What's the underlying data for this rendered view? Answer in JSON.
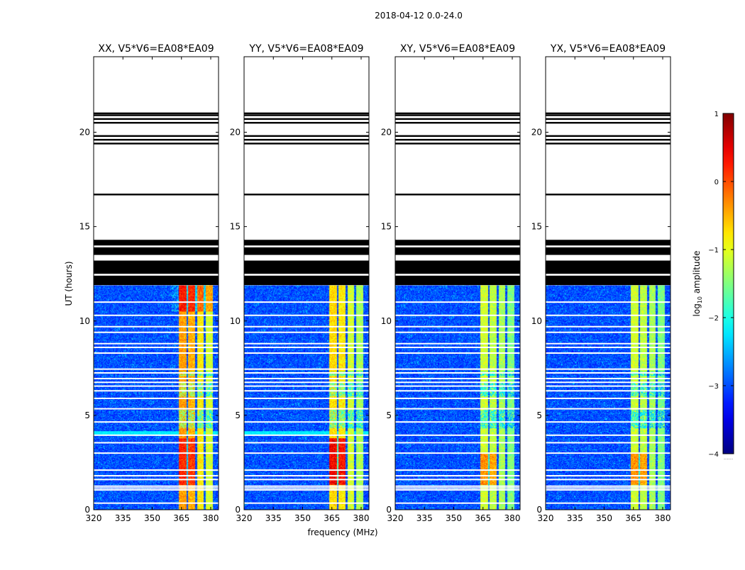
{
  "figure": {
    "suptitle": "2018-04-12 0.0-24.0",
    "xlabel": "frequency (MHz)",
    "ylabel": "UT (hours)",
    "colorbar_label": "log10 amplitude",
    "colorbar_label_base": "log",
    "colorbar_label_sub": "10",
    "colorbar_label_rest": " amplitude",
    "colorbar_dots": "......",
    "colormap": "jet"
  },
  "chart_data": {
    "type": "heatmap",
    "panels": [
      {
        "title": "XX, V5*V6=EA08*EA09",
        "pol": "XX"
      },
      {
        "title": "YY, V5*V6=EA08*EA09",
        "pol": "YY"
      },
      {
        "title": "XY, V5*V6=EA08*EA09",
        "pol": "XY"
      },
      {
        "title": "YX, V5*V6=EA08*EA09",
        "pol": "YX"
      }
    ],
    "x_range_mhz": [
      320,
      384
    ],
    "x_ticks": [
      320,
      335,
      350,
      365,
      380
    ],
    "x_tick_labels": [
      "320",
      "335",
      "350",
      "365",
      "380"
    ],
    "y_range_hours": [
      0,
      24
    ],
    "y_ticks": [
      0,
      5,
      10,
      15,
      20
    ],
    "y_tick_labels": [
      "0",
      "5",
      "10",
      "15",
      "20"
    ],
    "color_range_log10": [
      -4,
      1
    ],
    "colorbar_ticks": [
      1,
      0,
      -1,
      -2,
      -3,
      -4
    ],
    "colorbar_tick_labels": [
      "1",
      "0",
      "−1",
      "−2",
      "−3",
      "−4"
    ],
    "data_coverage_hours": [
      0,
      11.9
    ],
    "background_level_log10": -3.0,
    "rfi_channels_mhz": [
      [
        363.5,
        367.5
      ],
      [
        368.5,
        372
      ],
      [
        373,
        376.5
      ],
      [
        377.5,
        381
      ]
    ],
    "rfi_levels_log10": {
      "XX": [
        -0.4,
        -0.5,
        -0.8,
        -1.1
      ],
      "YY": [
        -0.7,
        -0.8,
        -1.1,
        -1.3
      ],
      "XY": [
        -1.1,
        -1.2,
        -1.3,
        -1.5
      ],
      "YX": [
        -1.1,
        -1.2,
        -1.3,
        -1.5
      ]
    },
    "rfi_bursts": [
      {
        "pol": "XX",
        "hours": [
          10.5,
          11.9
        ],
        "mhz": [
          360,
          381
        ],
        "boost_log10": 0.8
      },
      {
        "pol": "XX",
        "hours": [
          1.3,
          3.8
        ],
        "mhz": [
          363.5,
          372
        ],
        "boost_log10": 0.7
      },
      {
        "pol": "YY",
        "hours": [
          1.3,
          3.8
        ],
        "mhz": [
          363.5,
          372
        ],
        "boost_log10": 1.3
      },
      {
        "pol": "XY",
        "hours": [
          1.3,
          3.0
        ],
        "mhz": [
          363.5,
          372
        ],
        "boost_log10": 0.9
      },
      {
        "pol": "YX",
        "hours": [
          1.3,
          3.0
        ],
        "mhz": [
          363.5,
          372
        ],
        "boost_log10": 0.9
      }
    ],
    "rfi_gaps_hours": [
      [
        7.1,
        7.3
      ],
      [
        4.3,
        5.3
      ],
      [
        6.0,
        6.7
      ]
    ],
    "flagged_lines_hours": [
      0.35,
      1.05,
      1.15,
      1.25,
      1.6,
      1.8,
      2.1,
      3.0,
      3.55,
      3.95,
      4.65,
      5.35,
      5.9,
      6.3,
      6.55,
      6.75,
      6.95,
      7.25,
      7.45,
      8.3,
      8.6,
      8.8,
      9.4,
      9.7,
      10.3,
      11.0
    ],
    "horizontal_band_hours": [
      3.95,
      4.15
    ],
    "black_blocks_hours": [
      [
        11.9,
        12.4
      ],
      [
        12.5,
        13.2
      ],
      [
        13.5,
        13.9
      ],
      [
        14.0,
        14.3
      ]
    ],
    "black_lines_hours": [
      16.7,
      19.4,
      19.6,
      19.8,
      20.5,
      20.7,
      20.9,
      21.0
    ]
  }
}
